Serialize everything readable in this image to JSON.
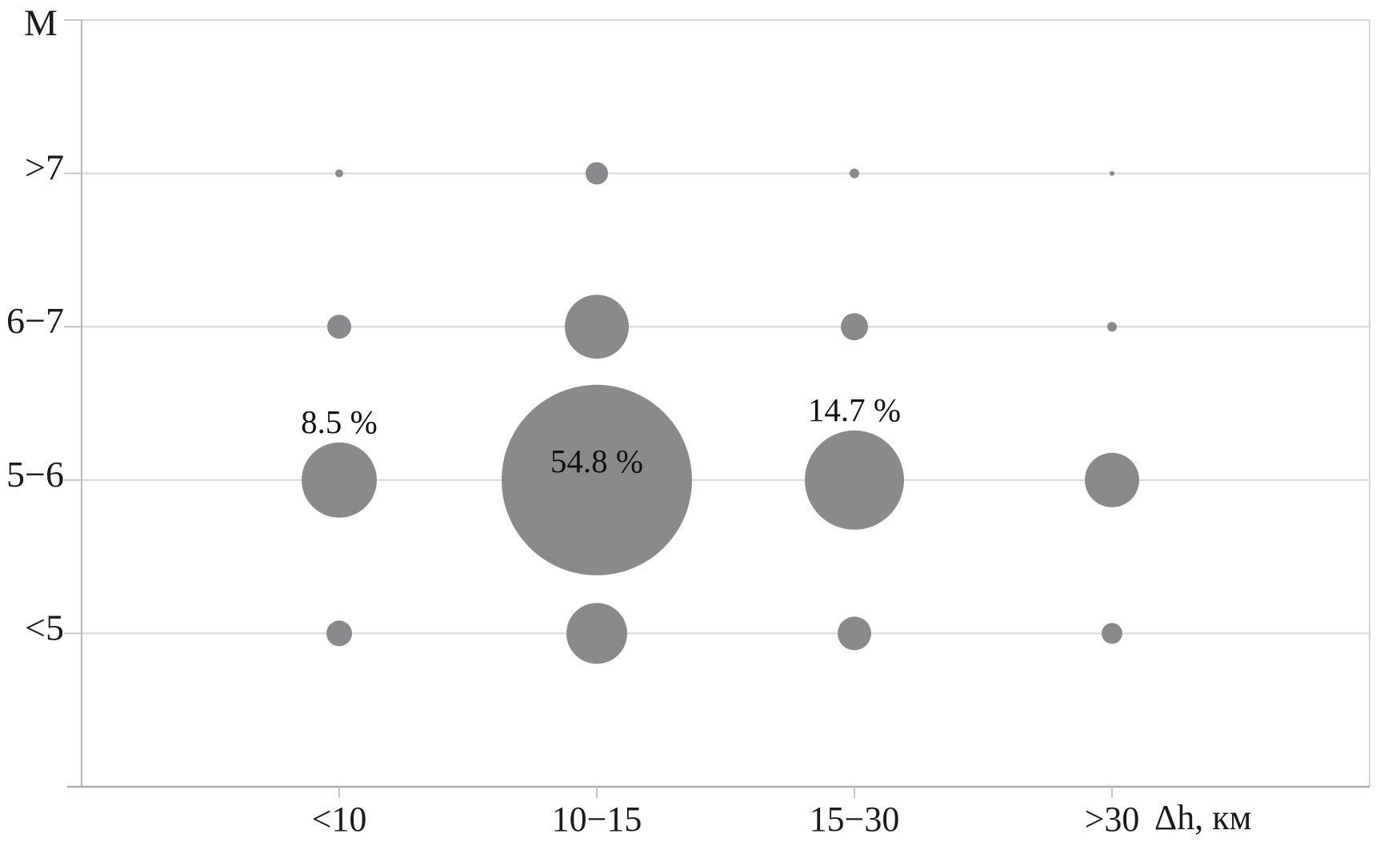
{
  "chart_data": {
    "type": "bubble",
    "title": "",
    "x_axis": {
      "label": "Δh, км",
      "categories": [
        "<10",
        "10−15",
        "15−30",
        ">30"
      ]
    },
    "y_axis": {
      "label": "M",
      "categories_top_to_bottom": [
        ">7",
        "6−7",
        "5−6",
        "<5"
      ]
    },
    "legend": "none",
    "grid": "horizontal lines only",
    "size_encoding": "bubble area proportional to percent of events; only three bubbles carry printed percent labels",
    "colors": {
      "bubble": "#8a8a8d",
      "gridline": "#d8d8d8",
      "axis": "#aeaeae",
      "tick": "#c6c6c6",
      "text": "#1b1b1b"
    },
    "bubbles": [
      {
        "x": "<10",
        "y": ">7",
        "radius_px": 5,
        "percent_est": 0.1,
        "label": ""
      },
      {
        "x": "10−15",
        "y": ">7",
        "radius_px": 14,
        "percent_est": 0.8,
        "label": ""
      },
      {
        "x": "15−30",
        "y": ">7",
        "radius_px": 6,
        "percent_est": 0.15,
        "label": ""
      },
      {
        "x": ">30",
        "y": ">7",
        "radius_px": 3,
        "percent_est": 0.04,
        "label": ""
      },
      {
        "x": "<10",
        "y": "6−7",
        "radius_px": 15,
        "percent_est": 0.9,
        "label": ""
      },
      {
        "x": "10−15",
        "y": "6−7",
        "radius_px": 40,
        "percent_est": 6.2,
        "label": ""
      },
      {
        "x": "15−30",
        "y": "6−7",
        "radius_px": 17,
        "percent_est": 1.1,
        "label": ""
      },
      {
        "x": ">30",
        "y": "6−7",
        "radius_px": 6,
        "percent_est": 0.15,
        "label": ""
      },
      {
        "x": "<10",
        "y": "5−6",
        "radius_px": 47,
        "percent": 8.5,
        "label": "8.5 %",
        "label_inside": false
      },
      {
        "x": "10−15",
        "y": "5−6",
        "radius_px": 119,
        "percent": 54.8,
        "label": "54.8 %",
        "label_inside": true
      },
      {
        "x": "15−30",
        "y": "5−6",
        "radius_px": 62,
        "percent": 14.7,
        "label": "14.7 %",
        "label_inside": false
      },
      {
        "x": ">30",
        "y": "5−6",
        "radius_px": 34,
        "percent_est": 4.5,
        "label": ""
      },
      {
        "x": "<10",
        "y": "<5",
        "radius_px": 16,
        "percent_est": 1.0,
        "label": ""
      },
      {
        "x": "10−15",
        "y": "<5",
        "radius_px": 38,
        "percent_est": 5.6,
        "label": ""
      },
      {
        "x": "15−30",
        "y": "<5",
        "radius_px": 21,
        "percent_est": 1.7,
        "label": ""
      },
      {
        "x": ">30",
        "y": "<5",
        "radius_px": 13,
        "percent_est": 0.65,
        "label": ""
      }
    ]
  }
}
